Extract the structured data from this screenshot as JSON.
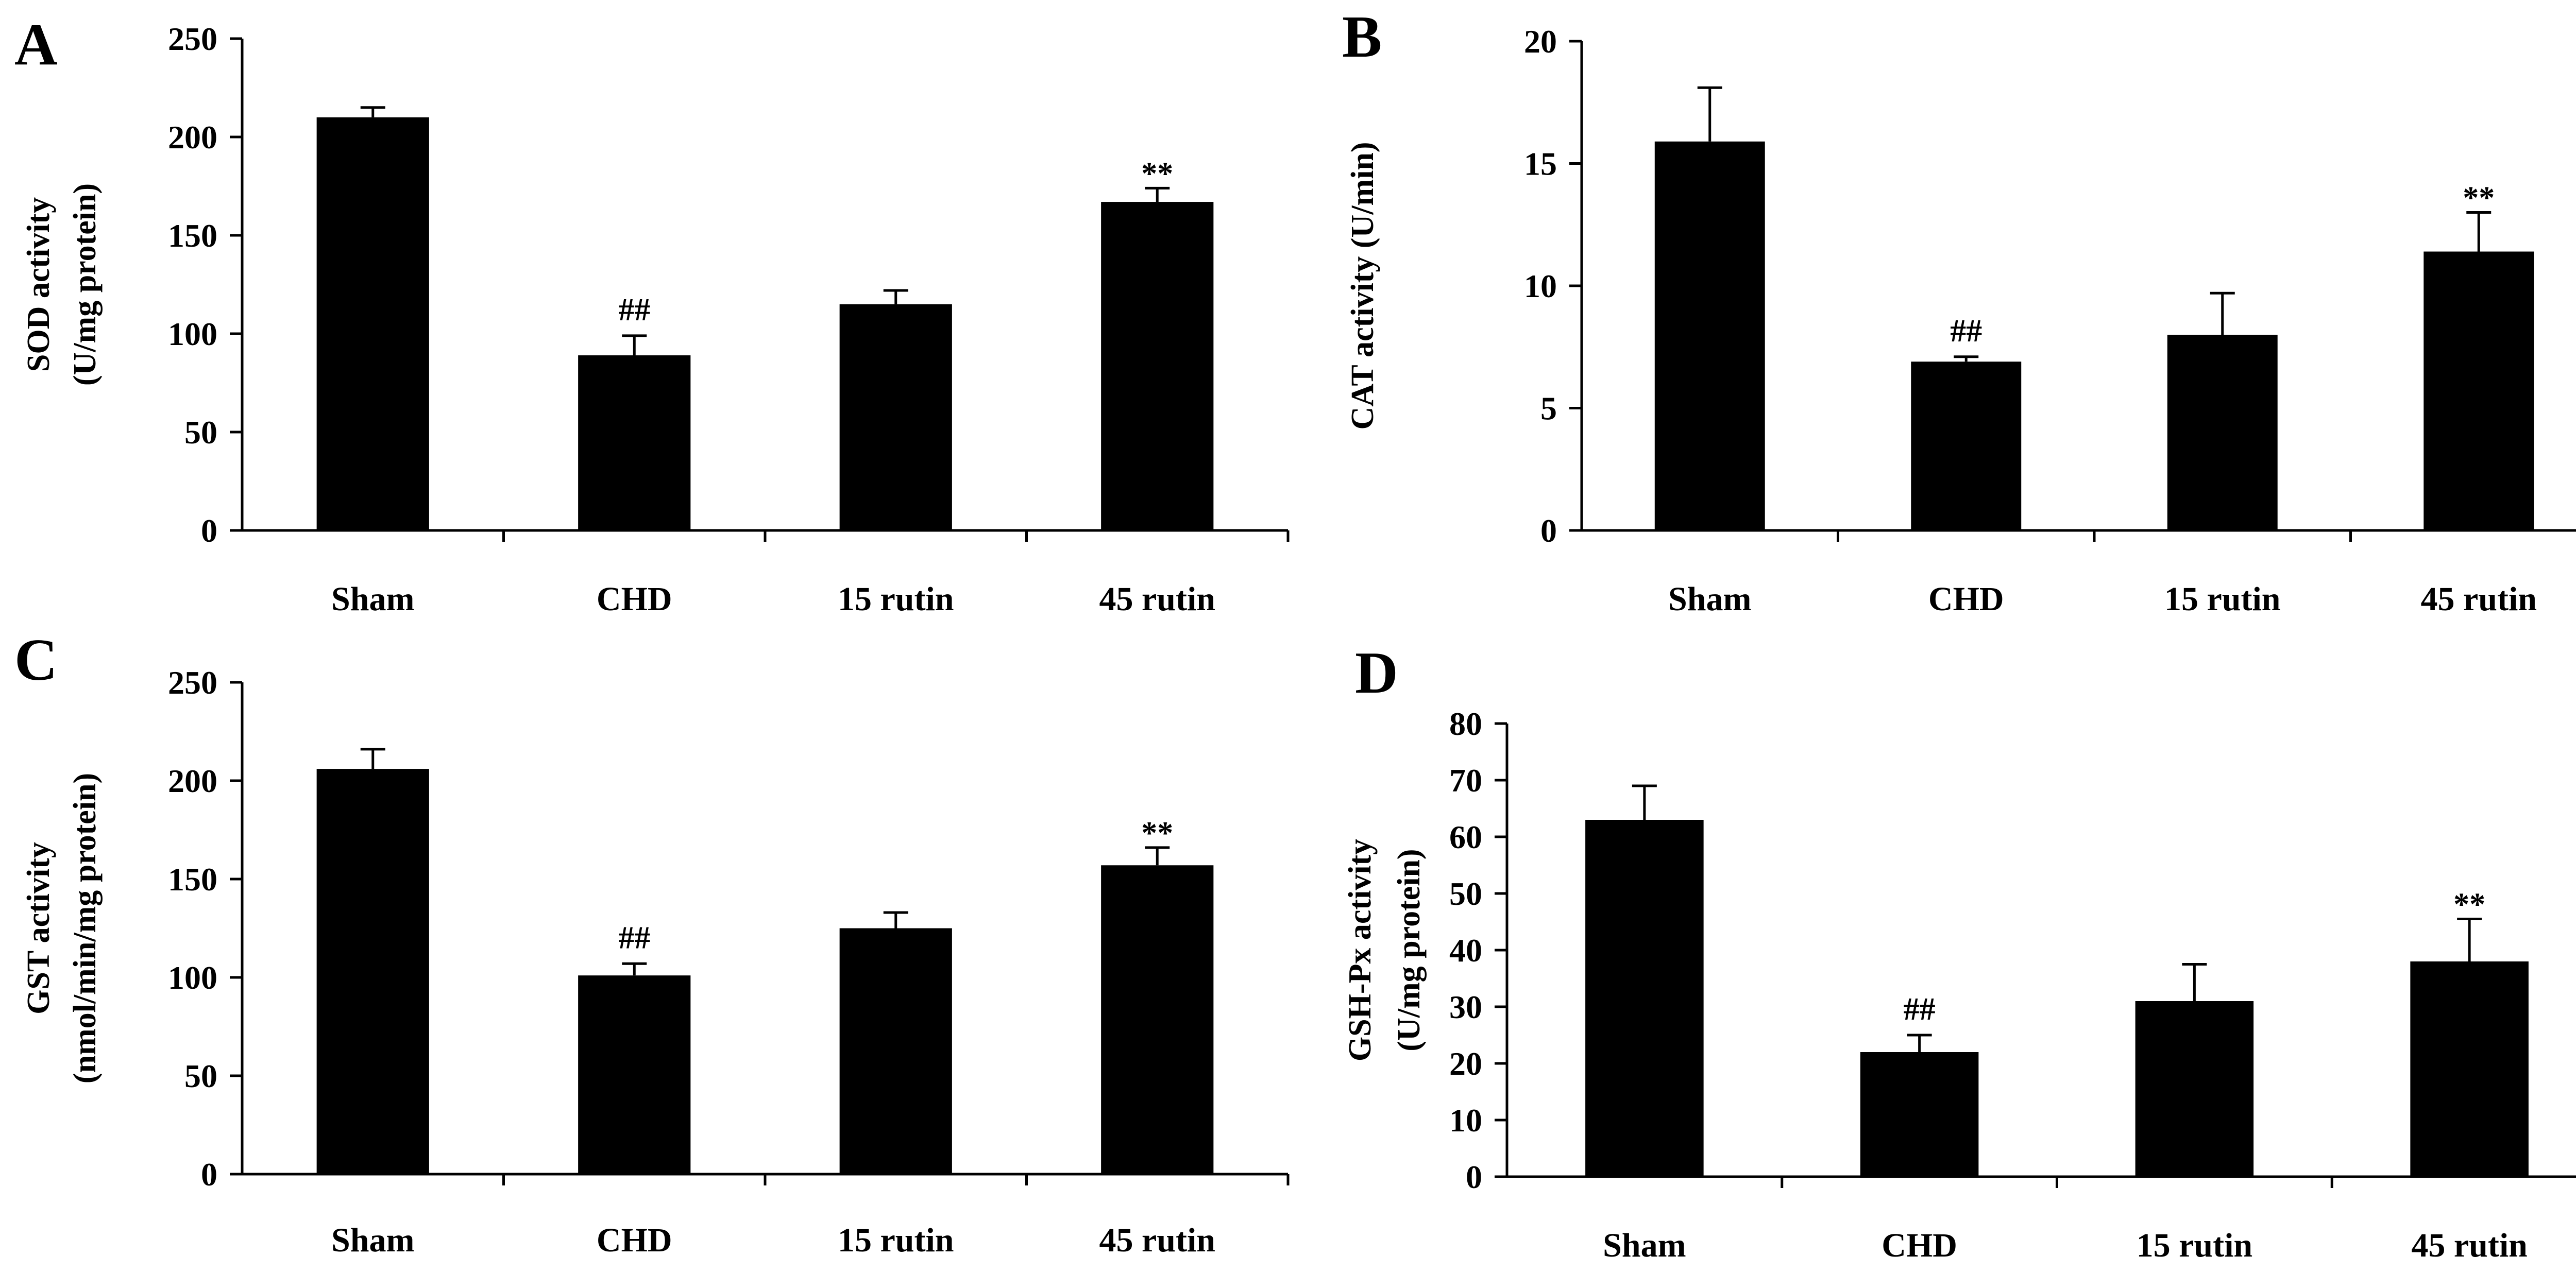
{
  "figure": {
    "title": ""
  },
  "chart_data": [
    {
      "panel": "A",
      "type": "bar",
      "categories": [
        "Sham",
        "CHD",
        "15 rutin",
        "45 rutin"
      ],
      "values": [
        210,
        89,
        115,
        167
      ],
      "errors": [
        5,
        10,
        7,
        7
      ],
      "annotations": [
        "",
        "##",
        "",
        "**"
      ],
      "ylabel_lines": [
        "SOD activity",
        "(U/mg protein)"
      ],
      "ylim": [
        0,
        250
      ],
      "yticks": [
        0,
        50,
        100,
        150,
        200,
        250
      ],
      "xlabel": "",
      "grid": false
    },
    {
      "panel": "B",
      "type": "bar",
      "categories": [
        "Sham",
        "CHD",
        "15 rutin",
        "45 rutin"
      ],
      "values": [
        15.9,
        6.9,
        8.0,
        11.4
      ],
      "errors": [
        2.2,
        0.2,
        1.7,
        1.6
      ],
      "annotations": [
        "",
        "##",
        "",
        "**"
      ],
      "ylabel_lines": [
        "CAT activity (U/min)"
      ],
      "ylim": [
        0,
        20
      ],
      "yticks": [
        0,
        5,
        10,
        15,
        20
      ],
      "xlabel": "",
      "grid": false
    },
    {
      "panel": "C",
      "type": "bar",
      "categories": [
        "Sham",
        "CHD",
        "15 rutin",
        "45 rutin"
      ],
      "values": [
        206,
        101,
        125,
        157
      ],
      "errors": [
        10,
        6,
        8,
        9
      ],
      "annotations": [
        "",
        "##",
        "",
        "**"
      ],
      "ylabel_lines": [
        "GST activity",
        "(nmol/min/mg protein)"
      ],
      "ylim": [
        0,
        250
      ],
      "yticks": [
        0,
        50,
        100,
        150,
        200,
        250
      ],
      "xlabel": "",
      "grid": false
    },
    {
      "panel": "D",
      "type": "bar",
      "categories": [
        "Sham",
        "CHD",
        "15 rutin",
        "45 rutin"
      ],
      "values": [
        63,
        22,
        31,
        38
      ],
      "errors": [
        6,
        3,
        6.5,
        7.5
      ],
      "annotations": [
        "",
        "##",
        "",
        "**"
      ],
      "ylabel_lines": [
        "GSH-Px activity",
        "(U/mg protein)"
      ],
      "ylim": [
        0,
        80
      ],
      "yticks": [
        0,
        10,
        20,
        30,
        40,
        50,
        60,
        70,
        80
      ],
      "xlabel": "",
      "grid": false
    }
  ]
}
